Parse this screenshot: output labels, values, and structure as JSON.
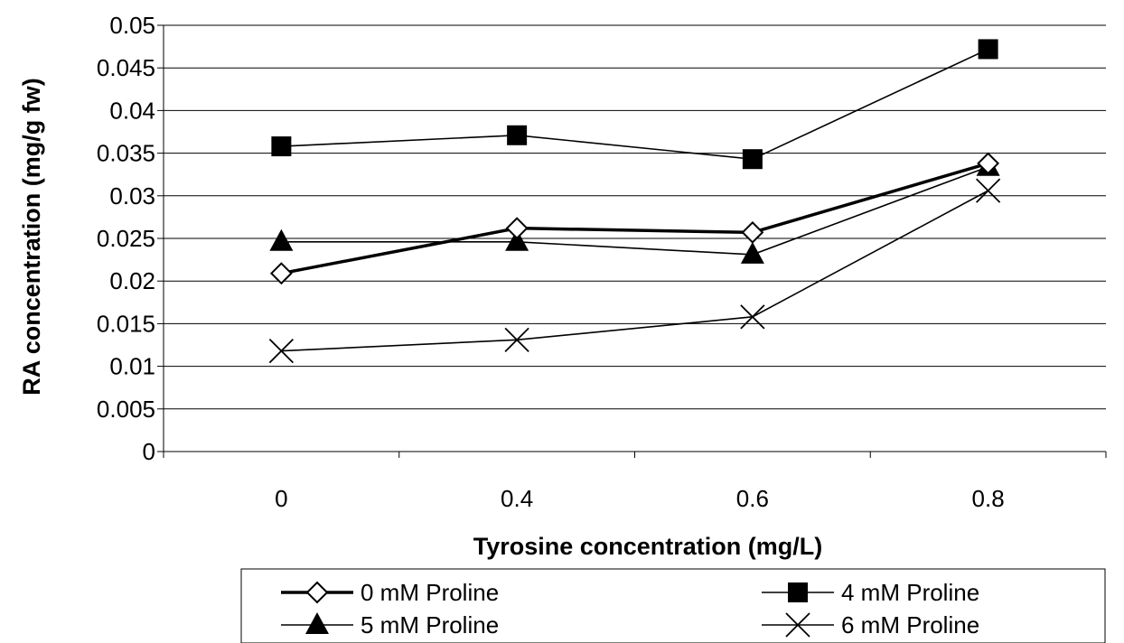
{
  "chart_data": {
    "type": "line",
    "title": "",
    "xlabel": "Tyrosine concentration (mg/L)",
    "ylabel": "RA concentration (mg/g fw)",
    "categories": [
      "0",
      "0.4",
      "0.6",
      "0.8"
    ],
    "ylim": [
      0,
      0.05
    ],
    "yticks": [
      "0",
      "0.005",
      "0.01",
      "0.015",
      "0.02",
      "0.025",
      "0.03",
      "0.035",
      "0.04",
      "0.045",
      "0.05"
    ],
    "grid": "horizontal",
    "legend_position": "bottom",
    "series": [
      {
        "name": "0 mM Proline",
        "values": [
          0.0209,
          0.0262,
          0.0257,
          0.0338
        ],
        "marker": "diamond-open",
        "line": "thick",
        "color": "#000000"
      },
      {
        "name": "4 mM Proline",
        "values": [
          0.0358,
          0.0371,
          0.0343,
          0.0472
        ],
        "marker": "square-filled",
        "line": "thin",
        "color": "#000000"
      },
      {
        "name": "5 mM Proline",
        "values": [
          0.0246,
          0.0246,
          0.0231,
          0.0334
        ],
        "marker": "triangle-filled",
        "line": "thin",
        "color": "#000000"
      },
      {
        "name": "6 mM Proline",
        "values": [
          0.0118,
          0.0131,
          0.0158,
          0.0306
        ],
        "marker": "x",
        "line": "thin",
        "color": "#000000"
      }
    ]
  }
}
